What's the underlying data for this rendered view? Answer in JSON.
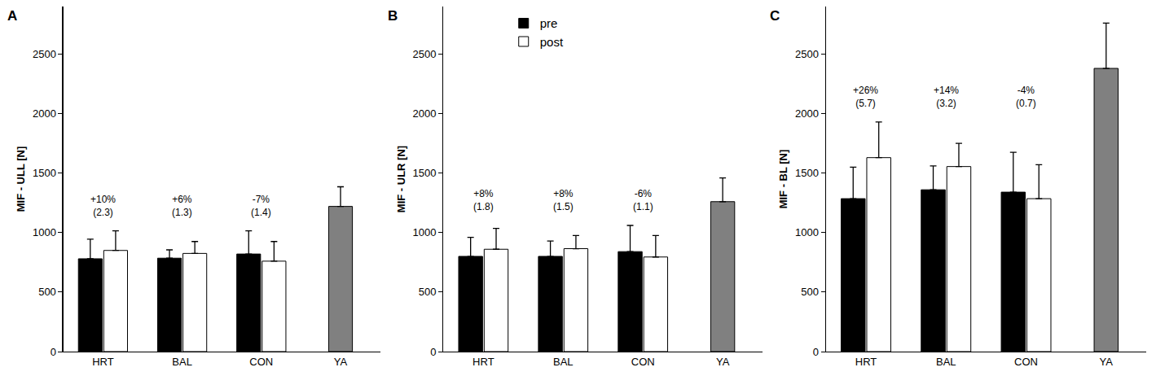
{
  "chart_data": [
    {
      "type": "bar",
      "panel": "A",
      "y_label": "MIF - ULL [N]",
      "categories": [
        "HRT",
        "BAL",
        "CON",
        "YA"
      ],
      "series": [
        {
          "name": "pre",
          "color": "#000000",
          "values": [
            780,
            785,
            820,
            null
          ],
          "errors": [
            165,
            70,
            195,
            null
          ]
        },
        {
          "name": "post",
          "color": "#ffffff",
          "values": [
            850,
            825,
            760,
            null
          ],
          "errors": [
            165,
            100,
            165,
            null
          ]
        },
        {
          "color": "#808080",
          "values": [
            null,
            null,
            null,
            1220
          ],
          "errors": [
            null,
            null,
            null,
            165
          ]
        }
      ],
      "annotations": [
        {
          "x": "HRT",
          "lines": [
            "+10%",
            "(2.3)"
          ]
        },
        {
          "x": "BAL",
          "lines": [
            "+6%",
            "(1.3)"
          ]
        },
        {
          "x": "CON",
          "lines": [
            "-7%",
            "(1.4)"
          ]
        }
      ],
      "ylim": [
        0,
        2900
      ],
      "yticks": [
        0,
        500,
        1000,
        1500,
        2000,
        2500
      ],
      "grid": false
    },
    {
      "type": "bar",
      "panel": "B",
      "y_label": "MIF - ULR [N]",
      "categories": [
        "HRT",
        "BAL",
        "CON",
        "YA"
      ],
      "series": [
        {
          "name": "pre",
          "color": "#000000",
          "values": [
            800,
            800,
            840,
            null
          ],
          "errors": [
            160,
            130,
            220,
            null
          ]
        },
        {
          "name": "post",
          "color": "#ffffff",
          "values": [
            860,
            865,
            795,
            null
          ],
          "errors": [
            175,
            110,
            180,
            null
          ]
        },
        {
          "color": "#808080",
          "values": [
            null,
            null,
            null,
            1260
          ],
          "errors": [
            null,
            null,
            null,
            200
          ]
        }
      ],
      "annotations": [
        {
          "x": "HRT",
          "lines": [
            "+8%",
            "(1.8)"
          ]
        },
        {
          "x": "BAL",
          "lines": [
            "+8%",
            "(1.5)"
          ]
        },
        {
          "x": "CON",
          "lines": [
            "-6%",
            "(1.1)"
          ]
        }
      ],
      "ylim": [
        0,
        2900
      ],
      "yticks": [
        0,
        500,
        1000,
        1500,
        2000,
        2500
      ],
      "grid": false,
      "legend": "top"
    },
    {
      "type": "bar",
      "panel": "C",
      "y_label": "MIF - BL [N]",
      "categories": [
        "HRT",
        "BAL",
        "CON",
        "YA"
      ],
      "series": [
        {
          "name": "pre",
          "color": "#000000",
          "values": [
            1285,
            1360,
            1340,
            null
          ],
          "errors": [
            265,
            200,
            335,
            null
          ]
        },
        {
          "name": "post",
          "color": "#ffffff",
          "values": [
            1630,
            1555,
            1285,
            null
          ],
          "errors": [
            300,
            195,
            285,
            null
          ]
        },
        {
          "color": "#808080",
          "values": [
            null,
            null,
            null,
            2380
          ],
          "errors": [
            null,
            null,
            null,
            380
          ]
        }
      ],
      "annotations": [
        {
          "x": "HRT",
          "lines": [
            "+26%",
            "(5.7)"
          ]
        },
        {
          "x": "BAL",
          "lines": [
            "+14%",
            "(3.2)"
          ]
        },
        {
          "x": "CON",
          "lines": [
            "-4%",
            "(0.7)"
          ]
        }
      ],
      "ylim": [
        0,
        2900
      ],
      "yticks": [
        0,
        500,
        1000,
        1500,
        2000,
        2500
      ],
      "grid": false
    }
  ]
}
